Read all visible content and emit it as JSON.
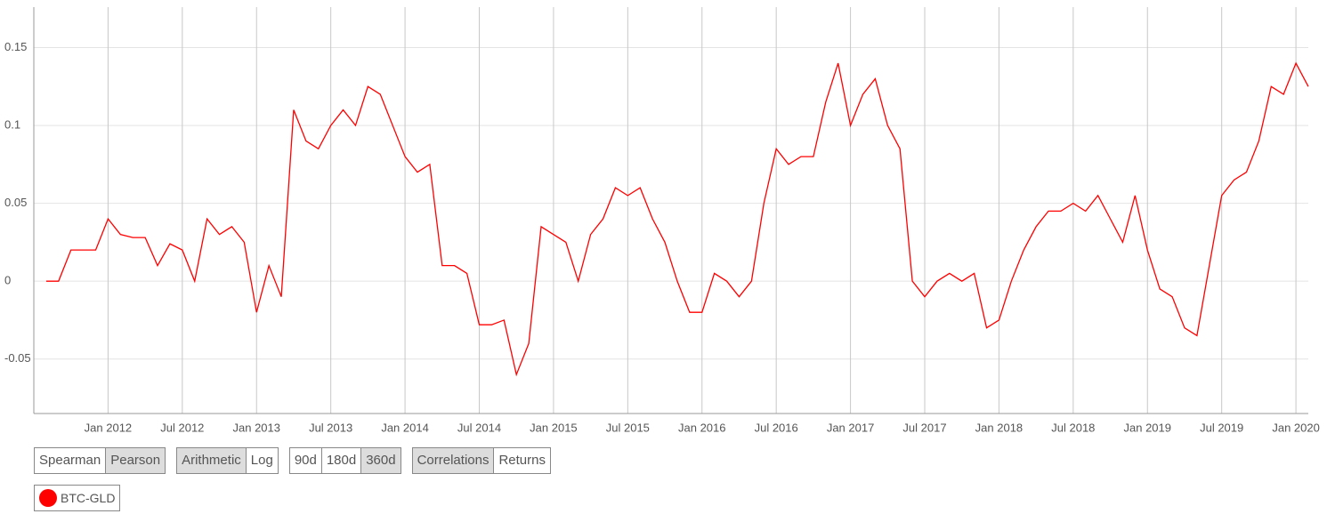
{
  "chart_data": {
    "type": "line",
    "x": [
      "2011-08",
      "2011-09",
      "2011-10",
      "2011-11",
      "2011-12",
      "2012-01",
      "2012-02",
      "2012-03",
      "2012-04",
      "2012-05",
      "2012-06",
      "2012-07",
      "2012-08",
      "2012-09",
      "2012-10",
      "2012-11",
      "2012-12",
      "2013-01",
      "2013-02",
      "2013-03",
      "2013-04",
      "2013-05",
      "2013-06",
      "2013-07",
      "2013-08",
      "2013-09",
      "2013-10",
      "2013-11",
      "2013-12",
      "2014-01",
      "2014-02",
      "2014-03",
      "2014-04",
      "2014-05",
      "2014-06",
      "2014-07",
      "2014-08",
      "2014-09",
      "2014-10",
      "2014-11",
      "2014-12",
      "2015-01",
      "2015-02",
      "2015-03",
      "2015-04",
      "2015-05",
      "2015-06",
      "2015-07",
      "2015-08",
      "2015-09",
      "2015-10",
      "2015-11",
      "2015-12",
      "2016-01",
      "2016-02",
      "2016-03",
      "2016-04",
      "2016-05",
      "2016-06",
      "2016-07",
      "2016-08",
      "2016-09",
      "2016-10",
      "2016-11",
      "2016-12",
      "2017-01",
      "2017-02",
      "2017-03",
      "2017-04",
      "2017-05",
      "2017-06",
      "2017-07",
      "2017-08",
      "2017-09",
      "2017-10",
      "2017-11",
      "2017-12",
      "2018-01",
      "2018-02",
      "2018-03",
      "2018-04",
      "2018-05",
      "2018-06",
      "2018-07",
      "2018-08",
      "2018-09",
      "2018-10",
      "2018-11",
      "2018-12",
      "2019-01",
      "2019-02",
      "2019-03",
      "2019-04",
      "2019-05",
      "2019-06",
      "2019-07",
      "2019-08",
      "2019-09",
      "2019-10",
      "2019-11",
      "2019-12",
      "2020-01",
      "2020-02"
    ],
    "series": [
      {
        "name": "BTC-GLD",
        "color": "#ff0000",
        "values": [
          0,
          0,
          0.02,
          0.02,
          0.02,
          0.04,
          0.03,
          0.028,
          0.028,
          0.01,
          0.024,
          0.02,
          0,
          0.04,
          0.03,
          0.035,
          0.025,
          -0.02,
          0.01,
          -0.01,
          0.11,
          0.09,
          0.085,
          0.1,
          0.11,
          0.1,
          0.125,
          0.12,
          0.1,
          0.08,
          0.07,
          0.075,
          0.01,
          0.01,
          0.005,
          -0.028,
          -0.028,
          -0.025,
          -0.06,
          -0.04,
          0.035,
          0.03,
          0.025,
          0,
          0.03,
          0.04,
          0.06,
          0.055,
          0.06,
          0.04,
          0.025,
          0,
          -0.02,
          -0.02,
          0.005,
          0,
          -0.01,
          0,
          0.05,
          0.085,
          0.075,
          0.08,
          0.08,
          0.115,
          0.14,
          0.1,
          0.12,
          0.13,
          0.1,
          0.085,
          0,
          -0.01,
          0,
          0.005,
          0,
          0.005,
          -0.03,
          -0.025,
          0,
          0.02,
          0.035,
          0.045,
          0.045,
          0.05,
          0.045,
          0.055,
          0.04,
          0.025,
          0.055,
          0.02,
          -0.005,
          -0.01,
          -0.03,
          -0.035,
          0.01,
          0.055,
          0.065,
          0.07,
          0.09,
          0.125,
          0.12,
          0.14,
          0.125
        ]
      }
    ],
    "xlim": [
      "2011-07",
      "2020-02"
    ],
    "xticks": [
      {
        "value": "2012-01",
        "label": "Jan 2012"
      },
      {
        "value": "2012-07",
        "label": "Jul 2012"
      },
      {
        "value": "2013-01",
        "label": "Jan 2013"
      },
      {
        "value": "2013-07",
        "label": "Jul 2013"
      },
      {
        "value": "2014-01",
        "label": "Jan 2014"
      },
      {
        "value": "2014-07",
        "label": "Jul 2014"
      },
      {
        "value": "2015-01",
        "label": "Jan 2015"
      },
      {
        "value": "2015-07",
        "label": "Jul 2015"
      },
      {
        "value": "2016-01",
        "label": "Jan 2016"
      },
      {
        "value": "2016-07",
        "label": "Jul 2016"
      },
      {
        "value": "2017-01",
        "label": "Jan 2017"
      },
      {
        "value": "2017-07",
        "label": "Jul 2017"
      },
      {
        "value": "2018-01",
        "label": "Jan 2018"
      },
      {
        "value": "2018-07",
        "label": "Jul 2018"
      },
      {
        "value": "2019-01",
        "label": "Jan 2019"
      },
      {
        "value": "2019-07",
        "label": "Jul 2019"
      },
      {
        "value": "2020-01",
        "label": "Jan 2020"
      }
    ],
    "ylim": [
      -0.085,
      0.176
    ],
    "yticks": [
      -0.05,
      0,
      0.05,
      0.1,
      0.15
    ],
    "grid": true
  },
  "controls": [
    {
      "options": [
        "Spearman",
        "Pearson"
      ],
      "selected": 1
    },
    {
      "options": [
        "Arithmetic",
        "Log"
      ],
      "selected": 0
    },
    {
      "options": [
        "90d",
        "180d",
        "360d"
      ],
      "selected": 2
    },
    {
      "options": [
        "Correlations",
        "Returns"
      ],
      "selected": 0
    }
  ]
}
